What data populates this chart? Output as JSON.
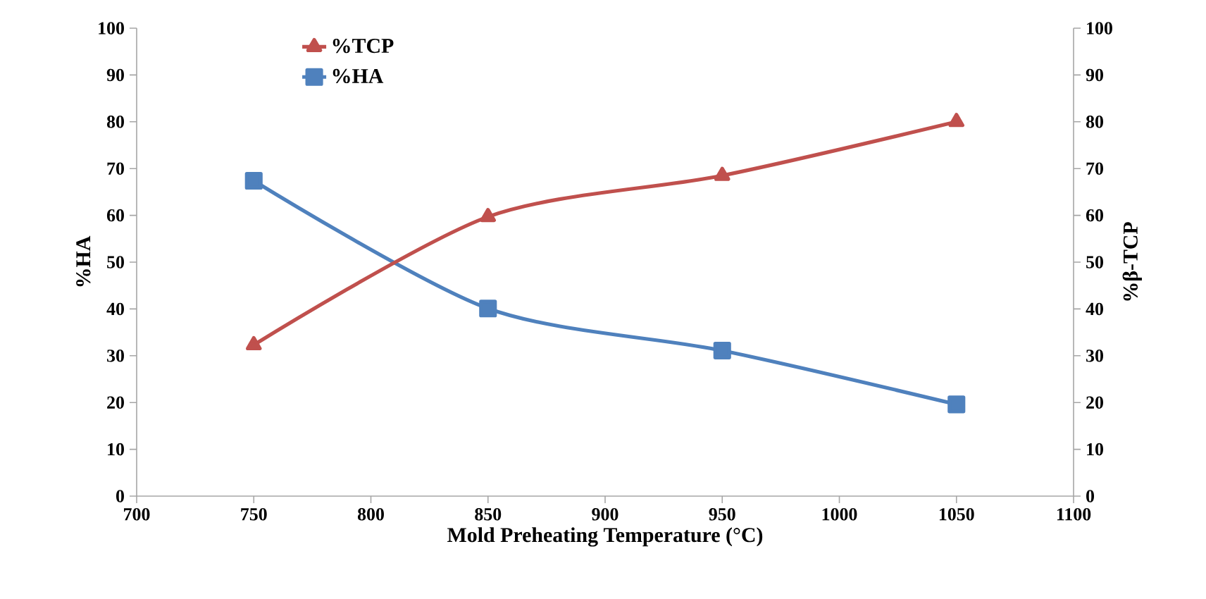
{
  "chart_data": {
    "type": "line",
    "xlabel": "Mold  Preheating Temperature (°C)",
    "ylabel": "%HA",
    "y2label": "%β-TCP",
    "x": [
      750,
      850,
      950,
      1050
    ],
    "xlim": [
      700,
      1100
    ],
    "xticks": [
      700,
      750,
      800,
      850,
      900,
      950,
      1000,
      1050,
      1100
    ],
    "ylim": [
      0,
      100
    ],
    "yticks": [
      0,
      10,
      20,
      30,
      40,
      50,
      60,
      70,
      80,
      90,
      100
    ],
    "y2lim": [
      0,
      100
    ],
    "y2ticks": [
      0,
      10,
      20,
      30,
      40,
      50,
      60,
      70,
      80,
      90,
      100
    ],
    "legend": "top left",
    "series": [
      {
        "name": "%TCP",
        "color": "#c0504d",
        "values": [
          32.3,
          59.7,
          68.5,
          80
        ],
        "axis": "y2",
        "marker": "triangle"
      },
      {
        "name": "%HA",
        "color": "#4f81bd",
        "values": [
          67.4,
          40.1,
          31.1,
          19.6
        ],
        "marker": "square"
      }
    ]
  }
}
